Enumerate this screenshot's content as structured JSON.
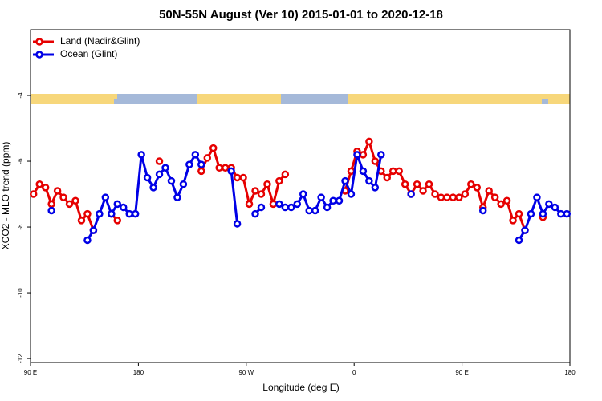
{
  "chart_data": {
    "type": "line",
    "title": "50N-55N August (Ver 10)   2015-01-01 to 2020-12-18",
    "x_label": "Longitude (deg E)",
    "y_label": "XCO2 - MLO trend (ppm)",
    "x": [
      92.5,
      97.5,
      102.5,
      107.5,
      112.5,
      117.5,
      122.5,
      127.5,
      132.5,
      137.5,
      142.5,
      147.5,
      152.5,
      157.5,
      162.5,
      167.5,
      172.5,
      177.5,
      182.5,
      187.5,
      192.5,
      197.5,
      202.5,
      207.5,
      212.5,
      217.5,
      222.5,
      227.5,
      232.5,
      237.5,
      242.5,
      247.5,
      252.5,
      257.5,
      262.5,
      267.5,
      272.5,
      277.5,
      282.5,
      287.5,
      292.5,
      297.5,
      302.5,
      307.5,
      312.5,
      317.5,
      322.5,
      327.5,
      332.5,
      337.5,
      342.5,
      347.5,
      352.5,
      357.5,
      362.5,
      367.5,
      372.5,
      377.5,
      382.5,
      387.5,
      392.5,
      397.5,
      402.5,
      407.5,
      412.5,
      417.5,
      422.5,
      427.5,
      432.5,
      437.5,
      442.5,
      447.5,
      452.5,
      457.5,
      462.5,
      467.5,
      472.5,
      477.5,
      482.5,
      487.5,
      492.5,
      497.5,
      502.5,
      507.5,
      512.5,
      517.5,
      522.5,
      527.5,
      532.5,
      537.5
    ],
    "series": [
      {
        "name": "Land (Nadir&Glint)",
        "color": "#e60000",
        "values": [
          -7.0,
          -6.7,
          -6.8,
          -7.3,
          -6.9,
          -7.1,
          -7.3,
          -7.2,
          -7.8,
          -7.6,
          -8.1,
          null,
          null,
          -7.6,
          -7.8,
          null,
          null,
          null,
          null,
          null,
          null,
          -6.0,
          null,
          null,
          null,
          null,
          null,
          null,
          -6.3,
          -5.9,
          -5.6,
          -6.2,
          -6.2,
          -6.2,
          -6.5,
          -6.5,
          -7.3,
          -6.9,
          -7.0,
          -6.7,
          -7.3,
          -6.6,
          -6.4,
          null,
          null,
          null,
          null,
          null,
          null,
          null,
          null,
          null,
          -6.9,
          -6.3,
          -5.7,
          -5.8,
          -5.4,
          -6.0,
          -6.3,
          -6.5,
          -6.3,
          -6.3,
          -6.7,
          -7.0,
          -6.7,
          -6.9,
          -6.7,
          -7.0,
          -7.1,
          -7.1,
          -7.1,
          -7.1,
          -7.0,
          -6.7,
          -6.8,
          -7.4,
          -6.9,
          -7.1,
          -7.3,
          -7.2,
          -7.8,
          -7.6,
          -8.1,
          null,
          null,
          -7.7,
          null,
          null,
          null,
          null
        ]
      },
      {
        "name": "Ocean (Glint)",
        "color": "#0000e6",
        "values": [
          null,
          null,
          null,
          -7.5,
          null,
          null,
          null,
          null,
          null,
          -8.4,
          -8.1,
          -7.6,
          -7.1,
          -7.6,
          -7.3,
          -7.4,
          -7.6,
          -7.6,
          -5.8,
          -6.5,
          -6.8,
          -6.4,
          -6.2,
          -6.6,
          -7.1,
          -6.7,
          -6.1,
          -5.8,
          -6.1,
          null,
          null,
          null,
          null,
          -6.3,
          -7.9,
          null,
          null,
          -7.6,
          -7.4,
          null,
          null,
          -7.3,
          -7.4,
          -7.4,
          -7.3,
          -7.0,
          -7.5,
          -7.5,
          -7.1,
          -7.4,
          -7.2,
          -7.2,
          -6.6,
          -7.0,
          -5.8,
          -6.3,
          -6.6,
          -6.8,
          -5.8,
          null,
          null,
          null,
          null,
          -7.0,
          null,
          null,
          null,
          null,
          null,
          null,
          null,
          null,
          null,
          null,
          null,
          -7.5,
          null,
          null,
          null,
          null,
          null,
          -8.4,
          -8.1,
          -7.6,
          -7.1,
          -7.6,
          -7.3,
          -7.4,
          -7.6,
          -7.6
        ]
      }
    ],
    "xlim": [
      90,
      540
    ],
    "xticks": [
      {
        "value": 90,
        "label": "90 E"
      },
      {
        "value": 180,
        "label": "180"
      },
      {
        "value": 270,
        "label": "90 W"
      },
      {
        "value": 360,
        "label": "0"
      },
      {
        "value": 450,
        "label": "90 E"
      },
      {
        "value": 540,
        "label": "180"
      }
    ],
    "ylim": [
      -12.12,
      -2
    ],
    "yticks": [
      -12,
      -10,
      -8,
      -6,
      -4
    ],
    "legend": "top-left"
  }
}
